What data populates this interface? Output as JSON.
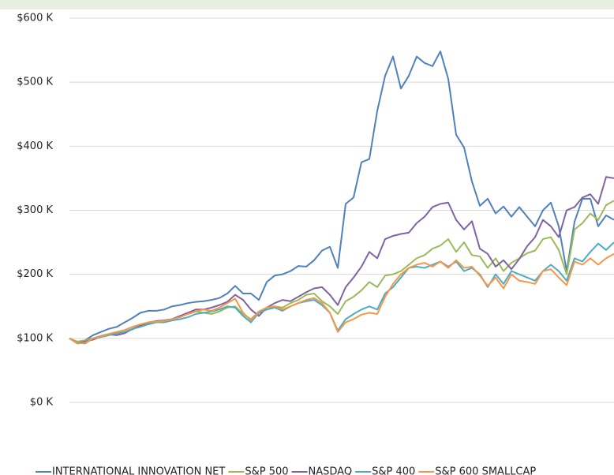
{
  "chart_data": {
    "type": "line",
    "ylim": [
      0,
      600
    ],
    "yticks": [
      {
        "value": 0,
        "label": "$0 K"
      },
      {
        "value": 100,
        "label": "$100 K"
      },
      {
        "value": 200,
        "label": "$200 K"
      },
      {
        "value": 300,
        "label": "$300 K"
      },
      {
        "value": 400,
        "label": "$400 K"
      },
      {
        "value": 500,
        "label": "$500 K"
      },
      {
        "value": 600,
        "label": "$600 K"
      }
    ],
    "grid": true,
    "legend": "bottom",
    "series": [
      {
        "name": "INTERNATIONAL INNOVATION NET",
        "color": "#4f81bd",
        "values": [
          100,
          93,
          97,
          105,
          110,
          115,
          118,
          125,
          132,
          140,
          143,
          143,
          145,
          150,
          152,
          155,
          157,
          158,
          160,
          163,
          170,
          182,
          170,
          170,
          160,
          188,
          198,
          200,
          205,
          213,
          212,
          222,
          237,
          243,
          210,
          310,
          320,
          375,
          380,
          455,
          510,
          540,
          490,
          510,
          540,
          530,
          525,
          548,
          505,
          418,
          398,
          345,
          307,
          318,
          295,
          306,
          290,
          305,
          290,
          275,
          300,
          312,
          275,
          205,
          282,
          318,
          318,
          275,
          292,
          285
        ]
      },
      {
        "name": "S&P 500",
        "color": "#9bbb59",
        "values": [
          100,
          95,
          97,
          100,
          104,
          107,
          108,
          110,
          114,
          120,
          125,
          127,
          128,
          130,
          135,
          138,
          142,
          140,
          138,
          142,
          148,
          150,
          138,
          130,
          142,
          148,
          150,
          148,
          155,
          160,
          168,
          170,
          158,
          150,
          138,
          158,
          165,
          175,
          188,
          180,
          198,
          200,
          205,
          215,
          225,
          230,
          240,
          245,
          255,
          235,
          250,
          230,
          228,
          210,
          225,
          205,
          218,
          225,
          233,
          237,
          255,
          258,
          238,
          200,
          270,
          280,
          295,
          285,
          308,
          315
        ]
      },
      {
        "name": "NASDAQ",
        "color": "#8064a2",
        "values": [
          100,
          92,
          95,
          98,
          103,
          106,
          105,
          108,
          115,
          120,
          124,
          127,
          128,
          130,
          135,
          140,
          145,
          145,
          148,
          152,
          157,
          168,
          160,
          145,
          135,
          148,
          155,
          160,
          158,
          165,
          172,
          178,
          180,
          168,
          152,
          180,
          195,
          212,
          235,
          225,
          255,
          260,
          263,
          265,
          280,
          290,
          305,
          310,
          312,
          285,
          270,
          283,
          240,
          232,
          212,
          222,
          208,
          224,
          244,
          258,
          285,
          275,
          258,
          300,
          305,
          320,
          325,
          310,
          352,
          350
        ]
      },
      {
        "name": "S&P 400",
        "color": "#4bacc6",
        "values": [
          100,
          93,
          92,
          100,
          102,
          105,
          108,
          110,
          115,
          118,
          122,
          125,
          125,
          128,
          130,
          133,
          138,
          140,
          142,
          145,
          150,
          148,
          135,
          125,
          140,
          145,
          148,
          143,
          150,
          155,
          158,
          160,
          152,
          140,
          112,
          130,
          138,
          145,
          150,
          145,
          170,
          180,
          195,
          210,
          212,
          210,
          215,
          220,
          212,
          220,
          205,
          210,
          200,
          180,
          200,
          185,
          205,
          200,
          195,
          190,
          205,
          215,
          205,
          190,
          225,
          220,
          235,
          248,
          238,
          250
        ]
      },
      {
        "name": "S&P 600 SMALLCAP",
        "color": "#f79646",
        "values": [
          100,
          92,
          93,
          100,
          103,
          107,
          110,
          113,
          118,
          122,
          125,
          126,
          127,
          130,
          133,
          138,
          142,
          145,
          143,
          148,
          155,
          162,
          140,
          128,
          142,
          148,
          150,
          145,
          150,
          155,
          160,
          163,
          155,
          140,
          110,
          125,
          130,
          137,
          140,
          138,
          165,
          185,
          200,
          210,
          215,
          218,
          212,
          220,
          210,
          222,
          210,
          212,
          198,
          182,
          195,
          178,
          200,
          190,
          188,
          185,
          205,
          208,
          195,
          183,
          220,
          215,
          225,
          215,
          225,
          232
        ]
      }
    ]
  }
}
